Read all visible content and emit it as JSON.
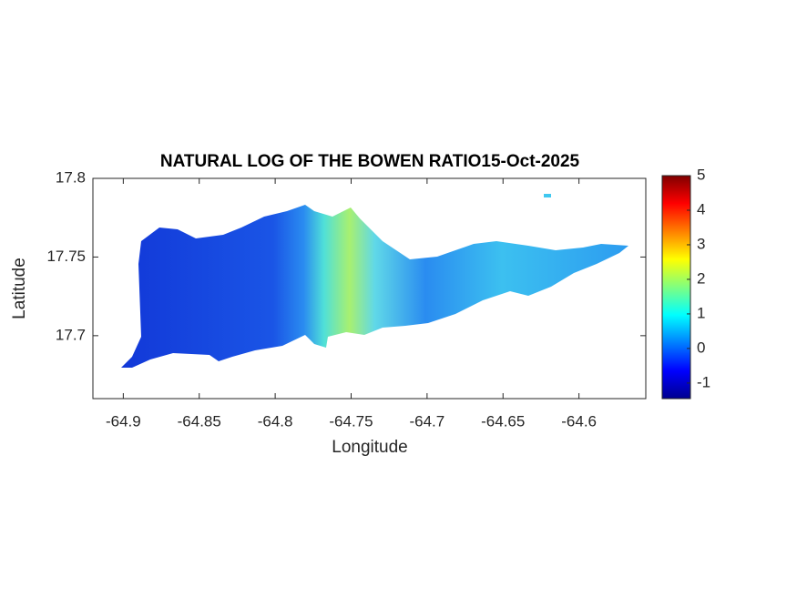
{
  "chart_data": {
    "type": "map",
    "title": "NATURAL LOG OF THE BOWEN RATIO15-Oct-2025",
    "x_label": "Longitude",
    "y_label": "Latitude",
    "xlim": [
      -64.92,
      -64.556
    ],
    "xticks": [
      -64.9,
      -64.85,
      -64.8,
      -64.75,
      -64.7,
      -64.65,
      -64.6
    ],
    "ylim": [
      17.66,
      17.8
    ],
    "yticks": [
      17.7,
      17.75,
      17.8
    ],
    "colormap": "jet",
    "clim": [
      -1.45,
      5
    ],
    "cticks": [
      -1,
      0,
      1,
      2,
      3,
      4,
      5
    ]
  }
}
